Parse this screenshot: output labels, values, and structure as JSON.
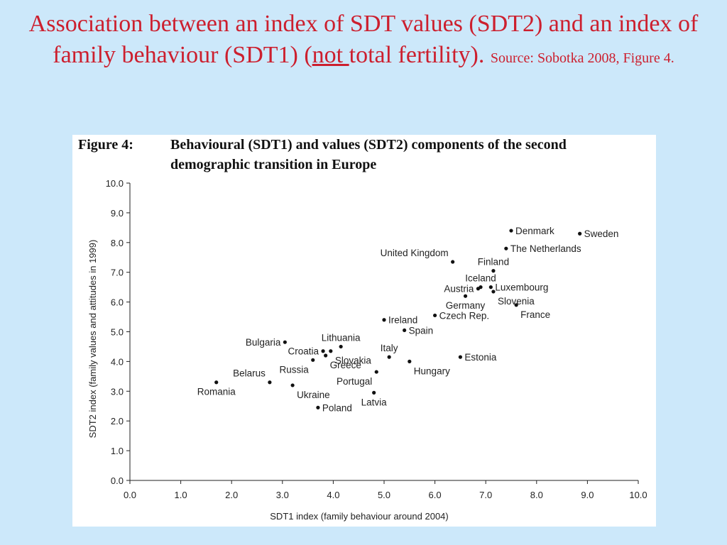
{
  "slide": {
    "title_part1": "Association between an index of SDT values (SDT2) and an index of family behaviour (SDT1) (",
    "title_underlined": "not ",
    "title_part2": "total fertility).",
    "source": "Source: Sobotka 2008, Figure 4."
  },
  "figure": {
    "number": "Figure 4:",
    "caption": "Behavioural (SDT1) and values (SDT2) components of the second demographic transition in Europe"
  },
  "chart_data": {
    "type": "scatter",
    "xlabel": "SDT1 index (family behaviour around 2004)",
    "ylabel": "SDT2 index (family values and attitudes in 1999)",
    "xlim": [
      0,
      10
    ],
    "ylim": [
      0,
      10
    ],
    "xticks": [
      "0.0",
      "1.0",
      "2.0",
      "3.0",
      "4.0",
      "5.0",
      "6.0",
      "7.0",
      "8.0",
      "9.0",
      "10.0"
    ],
    "yticks": [
      "0.0",
      "1.0",
      "2.0",
      "3.0",
      "4.0",
      "5.0",
      "6.0",
      "7.0",
      "8.0",
      "9.0",
      "10.0"
    ],
    "grid": false,
    "points": [
      {
        "label": "Denmark",
        "x": 7.5,
        "y": 8.4,
        "anchor": "right"
      },
      {
        "label": "Sweden",
        "x": 8.85,
        "y": 8.3,
        "anchor": "right"
      },
      {
        "label": "The Netherlands",
        "x": 7.4,
        "y": 7.8,
        "anchor": "right"
      },
      {
        "label": "United Kingdom",
        "x": 6.35,
        "y": 7.35,
        "anchor": "above-left"
      },
      {
        "label": "Finland",
        "x": 7.15,
        "y": 7.05,
        "anchor": "above"
      },
      {
        "label": "Iceland",
        "x": 6.9,
        "y": 6.5,
        "anchor": "above"
      },
      {
        "label": "Austria",
        "x": 6.85,
        "y": 6.45,
        "anchor": "left"
      },
      {
        "label": "Luxembourg",
        "x": 7.1,
        "y": 6.5,
        "anchor": "right"
      },
      {
        "label": "Germany",
        "x": 6.6,
        "y": 6.2,
        "anchor": "below"
      },
      {
        "label": "Slovenia",
        "x": 7.15,
        "y": 6.35,
        "anchor": "below-right"
      },
      {
        "label": "France",
        "x": 7.6,
        "y": 5.9,
        "anchor": "below-right"
      },
      {
        "label": "Czech Rep.",
        "x": 6.0,
        "y": 5.55,
        "anchor": "right"
      },
      {
        "label": "Ireland",
        "x": 5.0,
        "y": 5.4,
        "anchor": "right"
      },
      {
        "label": "Spain",
        "x": 5.4,
        "y": 5.05,
        "anchor": "right"
      },
      {
        "label": "Estonia",
        "x": 6.5,
        "y": 4.15,
        "anchor": "right"
      },
      {
        "label": "Bulgaria",
        "x": 3.05,
        "y": 4.65,
        "anchor": "left"
      },
      {
        "label": "Lithuania",
        "x": 4.15,
        "y": 4.5,
        "anchor": "above"
      },
      {
        "label": "Croatia",
        "x": 3.8,
        "y": 4.35,
        "anchor": "left"
      },
      {
        "label": "Slovakia",
        "x": 3.95,
        "y": 4.35,
        "anchor": "below-right"
      },
      {
        "label": "Italy",
        "x": 5.1,
        "y": 4.15,
        "anchor": "above"
      },
      {
        "label": "Greece",
        "x": 3.85,
        "y": 4.2,
        "anchor": "below-right"
      },
      {
        "label": "Russia",
        "x": 3.6,
        "y": 4.05,
        "anchor": "below-left"
      },
      {
        "label": "Hungary",
        "x": 5.5,
        "y": 4.0,
        "anchor": "below-right"
      },
      {
        "label": "Belarus",
        "x": 2.75,
        "y": 3.3,
        "anchor": "above-left"
      },
      {
        "label": "Portugal",
        "x": 4.85,
        "y": 3.65,
        "anchor": "below-left"
      },
      {
        "label": "Romania",
        "x": 1.7,
        "y": 3.3,
        "anchor": "below"
      },
      {
        "label": "Ukraine",
        "x": 3.2,
        "y": 3.2,
        "anchor": "below-right"
      },
      {
        "label": "Latvia",
        "x": 4.8,
        "y": 2.95,
        "anchor": "below"
      },
      {
        "label": "Poland",
        "x": 3.7,
        "y": 2.45,
        "anchor": "right"
      }
    ]
  }
}
